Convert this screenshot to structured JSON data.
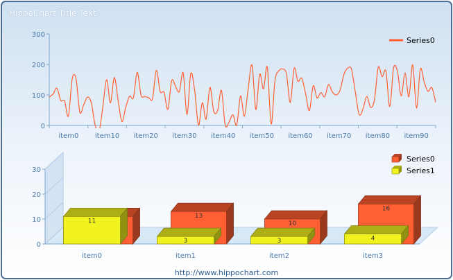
{
  "title": "HippoChart Title Text",
  "footer": "http://www.hippochart.com",
  "colors": {
    "frame_border": "#4e6f93",
    "axis": "#7ea6cc",
    "tick_text": "#4a79a8",
    "series0": "#ff5f32",
    "series1": "#f2f21e"
  },
  "chart_data": [
    {
      "type": "line",
      "title": "",
      "x_ticks": [
        "item0",
        "item10",
        "item20",
        "item30",
        "item40",
        "item50",
        "item60",
        "item70",
        "item80",
        "item90"
      ],
      "y_ticks": [
        "0",
        "100",
        "200",
        "300"
      ],
      "ylim": [
        0,
        300
      ],
      "grid": false,
      "legend": {
        "position": "top-right",
        "entries": [
          "Series0"
        ]
      },
      "series": [
        {
          "name": "Series0",
          "values": [
            93,
            103,
            122,
            82,
            80,
            31,
            153,
            153,
            43,
            68,
            93,
            74,
            1,
            -20,
            60,
            150,
            74,
            157,
            82,
            13,
            60,
            96,
            91,
            174,
            99,
            95,
            91,
            88,
            181,
            111,
            109,
            53,
            147,
            128,
            111,
            173,
            36,
            170,
            115,
            1,
            75,
            21,
            125,
            46,
            49,
            115,
            1,
            11,
            35,
            1,
            97,
            30,
            121,
            198,
            52,
            168,
            120,
            191,
            5,
            147,
            179,
            185,
            169,
            75,
            187,
            145,
            155,
            104,
            49,
            130,
            90,
            108,
            94,
            134,
            110,
            100,
            115,
            166,
            188,
            184,
            109,
            36,
            54,
            95,
            59,
            84,
            191,
            160,
            178,
            62,
            188,
            178,
            97,
            172,
            94,
            199,
            57,
            185,
            142,
            112,
            124,
            75
          ]
        }
      ]
    },
    {
      "type": "bar",
      "title": "",
      "categories": [
        "item0",
        "item1",
        "item2",
        "item3"
      ],
      "y_ticks": [
        "0",
        "10",
        "20",
        "30"
      ],
      "ylim": [
        0,
        30
      ],
      "legend": {
        "position": "top-right",
        "entries": [
          "Series0",
          "Series1"
        ]
      },
      "series": [
        {
          "name": "Series0",
          "values": [
            11,
            13,
            10,
            16
          ]
        },
        {
          "name": "Series1",
          "values": [
            11,
            3,
            3,
            4
          ]
        }
      ]
    }
  ]
}
